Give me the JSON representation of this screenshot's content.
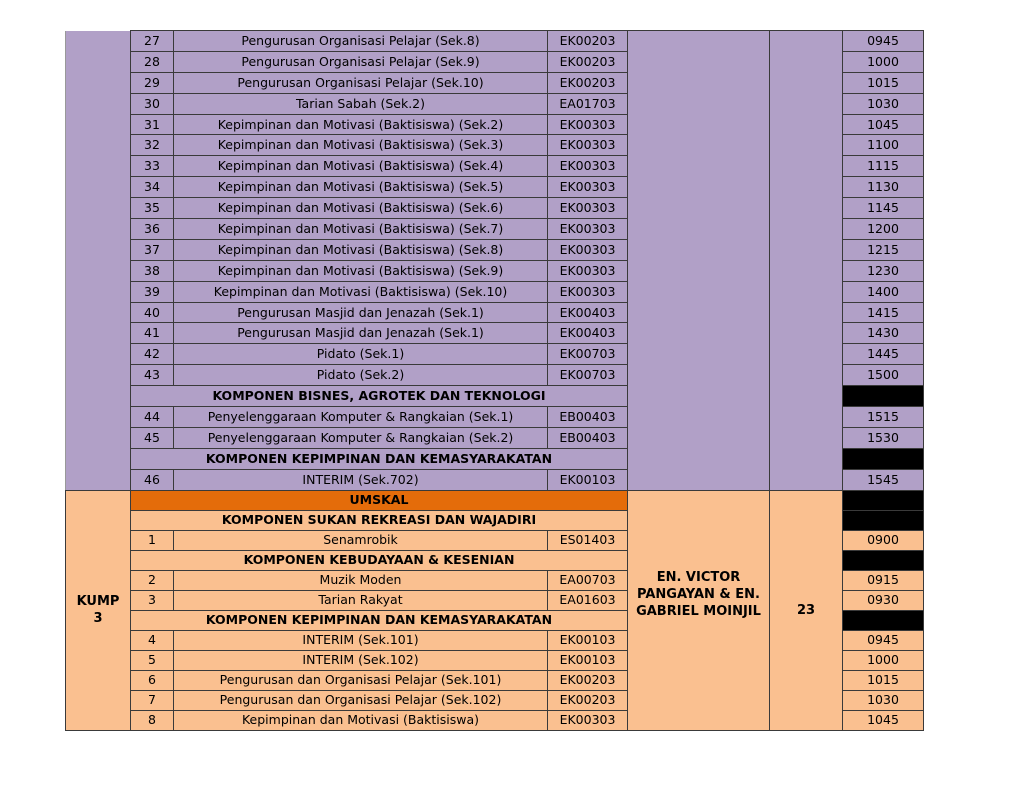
{
  "section1": {
    "kump": "",
    "lecturer": "",
    "count": "",
    "rows": [
      {
        "no": "27",
        "name": "Pengurusan Organisasi Pelajar (Sek.8)",
        "code": "EK00203",
        "time": "0945"
      },
      {
        "no": "28",
        "name": "Pengurusan Organisasi Pelajar (Sek.9)",
        "code": "EK00203",
        "time": "1000"
      },
      {
        "no": "29",
        "name": "Pengurusan Organisasi Pelajar (Sek.10)",
        "code": "EK00203",
        "time": "1015"
      },
      {
        "no": "30",
        "name": "Tarian Sabah (Sek.2)",
        "code": "EA01703",
        "time": "1030"
      },
      {
        "no": "31",
        "name": "Kepimpinan dan Motivasi (Baktisiswa) (Sek.2)",
        "code": "EK00303",
        "time": "1045"
      },
      {
        "no": "32",
        "name": "Kepimpinan dan Motivasi (Baktisiswa) (Sek.3)",
        "code": "EK00303",
        "time": "1100"
      },
      {
        "no": "33",
        "name": "Kepimpinan dan Motivasi (Baktisiswa) (Sek.4)",
        "code": "EK00303",
        "time": "1115"
      },
      {
        "no": "34",
        "name": "Kepimpinan dan Motivasi (Baktisiswa) (Sek.5)",
        "code": "EK00303",
        "time": "1130"
      },
      {
        "no": "35",
        "name": "Kepimpinan dan Motivasi (Baktisiswa) (Sek.6)",
        "code": "EK00303",
        "time": "1145"
      },
      {
        "no": "36",
        "name": "Kepimpinan dan Motivasi (Baktisiswa) (Sek.7)",
        "code": "EK00303",
        "time": "1200"
      },
      {
        "no": "37",
        "name": "Kepimpinan dan Motivasi (Baktisiswa) (Sek.8)",
        "code": "EK00303",
        "time": "1215"
      },
      {
        "no": "38",
        "name": "Kepimpinan dan Motivasi (Baktisiswa) (Sek.9)",
        "code": "EK00303",
        "time": "1230"
      },
      {
        "no": "39",
        "name": "Kepimpinan dan Motivasi (Baktisiswa) (Sek.10)",
        "code": "EK00303",
        "time": "1400"
      },
      {
        "no": "40",
        "name": "Pengurusan Masjid dan Jenazah (Sek.1)",
        "code": "EK00403",
        "time": "1415"
      },
      {
        "no": "41",
        "name": "Pengurusan Masjid dan Jenazah (Sek.1)",
        "code": "EK00403",
        "time": "1430"
      },
      {
        "no": "42",
        "name": "Pidato (Sek.1)",
        "code": "EK00703",
        "time": "1445"
      },
      {
        "no": "43",
        "name": "Pidato (Sek.2)",
        "code": "EK00703",
        "time": "1500"
      },
      {
        "header": "KOMPONEN BISNES, AGROTEK DAN TEKNOLOGI"
      },
      {
        "no": "44",
        "name": "Penyelenggaraan Komputer & Rangkaian (Sek.1)",
        "code": "EB00403",
        "time": "1515"
      },
      {
        "no": "45",
        "name": "Penyelenggaraan Komputer & Rangkaian (Sek.2)",
        "code": "EB00403",
        "time": "1530"
      },
      {
        "header": "KOMPONEN KEPIMPINAN DAN KEMASYARAKATAN"
      },
      {
        "no": "46",
        "name": "INTERIM (Sek.702)",
        "code": "EK00103",
        "time": "1545"
      }
    ]
  },
  "section2": {
    "kump": "KUMP 3",
    "lecturer": "EN. VICTOR PANGAYAN & EN. GABRIEL MOINJIL",
    "count": "23",
    "rows": [
      {
        "header": "UMSKAL",
        "accent": true
      },
      {
        "header": "KOMPONEN SUKAN REKREASI DAN WAJADIRI"
      },
      {
        "no": "1",
        "name": "Senamrobik",
        "code": "ES01403",
        "time": "0900"
      },
      {
        "header": "KOMPONEN KEBUDAYAAN & KESENIAN"
      },
      {
        "no": "2",
        "name": "Muzik Moden",
        "code": "EA00703",
        "time": "0915"
      },
      {
        "no": "3",
        "name": "Tarian Rakyat",
        "code": "EA01603",
        "time": "0930"
      },
      {
        "header": "KOMPONEN KEPIMPINAN DAN KEMASYARAKATAN"
      },
      {
        "no": "4",
        "name": "INTERIM (Sek.101)",
        "code": "EK00103",
        "time": "0945"
      },
      {
        "no": "5",
        "name": "INTERIM (Sek.102)",
        "code": "EK00103",
        "time": "1000"
      },
      {
        "no": "6",
        "name": "Pengurusan dan Organisasi Pelajar (Sek.101)",
        "code": "EK00203",
        "time": "1015"
      },
      {
        "no": "7",
        "name": "Pengurusan dan Organisasi Pelajar (Sek.102)",
        "code": "EK00203",
        "time": "1030"
      },
      {
        "no": "8",
        "name": "Kepimpinan dan Motivasi (Baktisiswa)",
        "code": "EK00303",
        "time": "1045"
      }
    ]
  },
  "colors": {
    "purple": "#b1a0c7",
    "orange": "#fac090",
    "accent": "#e46c0a",
    "blocked": "#000000"
  }
}
